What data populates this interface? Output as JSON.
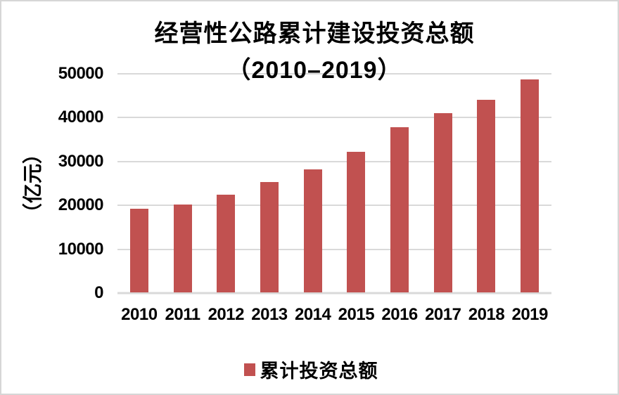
{
  "title": {
    "line1": "经营性公路累计建设投资总额",
    "line2": "（2010–2019）"
  },
  "y_axis": {
    "title": "（亿元）",
    "ticks": [
      "50000",
      "40000",
      "30000",
      "20000",
      "10000",
      "0"
    ]
  },
  "x_axis": {
    "labels": [
      "2010",
      "2011",
      "2012",
      "2013",
      "2014",
      "2015",
      "2016",
      "2017",
      "2018",
      "2019"
    ]
  },
  "legend": {
    "label": "累计投资总额"
  },
  "colors": {
    "bar": "#C15150",
    "gridline": "#D9D9D9",
    "text": "#000000",
    "background": "#FFFFFF",
    "canvas_border": "#D6D6D6"
  },
  "chart_data": {
    "type": "bar",
    "title": "经营性公路累计建设投资总额（2010–2019）",
    "categories": [
      "2010",
      "2011",
      "2012",
      "2013",
      "2014",
      "2015",
      "2016",
      "2017",
      "2018",
      "2019"
    ],
    "series": [
      {
        "name": "累计投资总额",
        "values": [
          19000,
          20000,
          22300,
          25200,
          28000,
          32000,
          37600,
          40800,
          43900,
          48500
        ]
      }
    ],
    "xlabel": "",
    "ylabel": "（亿元）",
    "ylim": [
      0,
      50000
    ],
    "ytick_interval": 10000,
    "grid": true,
    "legend_position": "bottom",
    "bar_color": "#C15150"
  }
}
